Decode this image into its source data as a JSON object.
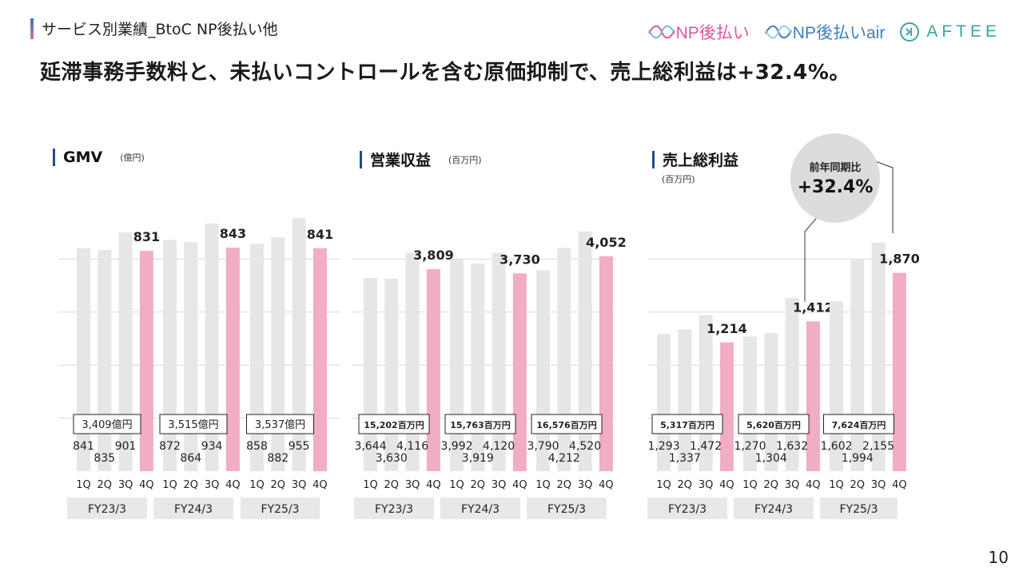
{
  "header": {
    "section_title": "サービス別業績_BtoC NP後払い他",
    "headline": "延滞事務手数料と、未払いコントロールを含む原価抑制で、売上総利益は+32.4%。",
    "logos": [
      {
        "name": "np-atobarai-logo",
        "text": "NP後払い"
      },
      {
        "name": "np-atobarai-air-logo",
        "text": "NP後払いair"
      },
      {
        "name": "aftee-logo",
        "text": "AFTEE"
      }
    ]
  },
  "page_number": "10",
  "colors": {
    "bar_gray": "#e6e6e6",
    "bar_pink": "#f0adc4",
    "fy_band": "#e8e8e8",
    "grid": "#d9d9d9"
  },
  "annotation": {
    "line1": "前年同期比",
    "line2": "+32.4%"
  },
  "chart_data": [
    {
      "type": "bar",
      "title": "GMV",
      "unit": "(億円)",
      "categories": [
        "1Q",
        "2Q",
        "3Q",
        "4Q",
        "1Q",
        "2Q",
        "3Q",
        "4Q",
        "1Q",
        "2Q",
        "3Q",
        "4Q"
      ],
      "fiscal_years": [
        "FY23/3",
        "FY24/3",
        "FY25/3"
      ],
      "values": [
        841,
        835,
        901,
        831,
        872,
        864,
        934,
        843,
        858,
        882,
        955,
        841
      ],
      "highlight": [
        false,
        false,
        false,
        true,
        false,
        false,
        false,
        true,
        false,
        false,
        false,
        true
      ],
      "totals": [
        "3,409億円",
        "3,515億円",
        "3,537億円"
      ],
      "ylim": [
        0,
        1000
      ]
    },
    {
      "type": "bar",
      "title": "営業収益",
      "unit": "(百万円)",
      "categories": [
        "1Q",
        "2Q",
        "3Q",
        "4Q",
        "1Q",
        "2Q",
        "3Q",
        "4Q",
        "1Q",
        "2Q",
        "3Q",
        "4Q"
      ],
      "fiscal_years": [
        "FY23/3",
        "FY24/3",
        "FY25/3"
      ],
      "values": [
        3644,
        3630,
        4116,
        3809,
        3992,
        3919,
        4120,
        3730,
        3790,
        4212,
        4520,
        4052
      ],
      "highlight": [
        false,
        false,
        false,
        true,
        false,
        false,
        false,
        true,
        false,
        false,
        false,
        true
      ],
      "totals": [
        "15,202百万円",
        "15,763百万円",
        "16,576百万円"
      ],
      "ylim": [
        0,
        5000
      ]
    },
    {
      "type": "bar",
      "title": "売上総利益",
      "unit": "(百万円)",
      "categories": [
        "1Q",
        "2Q",
        "3Q",
        "4Q",
        "1Q",
        "2Q",
        "3Q",
        "4Q",
        "1Q",
        "2Q",
        "3Q",
        "4Q"
      ],
      "fiscal_years": [
        "FY23/3",
        "FY24/3",
        "FY25/3"
      ],
      "values": [
        1293,
        1337,
        1472,
        1214,
        1270,
        1304,
        1632,
        1412,
        1602,
        1994,
        2155,
        1870
      ],
      "highlight": [
        false,
        false,
        false,
        true,
        false,
        false,
        false,
        true,
        false,
        false,
        false,
        true
      ],
      "totals": [
        "5,317百万円",
        "5,620百万円",
        "7,624百万円"
      ],
      "ylim": [
        0,
        2500
      ]
    }
  ]
}
